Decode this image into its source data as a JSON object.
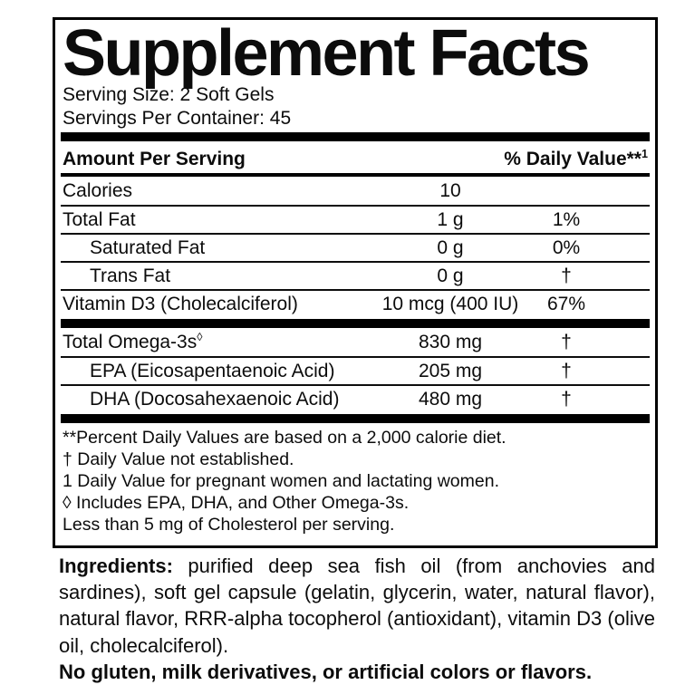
{
  "supplement": {
    "title": "Supplement Facts",
    "serving_size": "Serving Size: 2 Soft Gels",
    "servings_per_container": "Servings Per Container: 45",
    "header": {
      "amount_label": "Amount Per Serving",
      "daily_value_label": "% Daily Value**",
      "daily_value_sup": "1"
    },
    "rows": [
      {
        "name": "Calories",
        "sup": "",
        "amount": "10",
        "dv": ""
      },
      {
        "name": "Total Fat",
        "sup": "",
        "amount": "1 g",
        "dv": "1%"
      },
      {
        "name": "Saturated Fat",
        "sup": "",
        "amount": "0 g",
        "dv": "0%"
      },
      {
        "name": "Trans Fat",
        "sup": "",
        "amount": "0 g",
        "dv": "†"
      },
      {
        "name": "Vitamin D3 (Cholecalciferol)",
        "sup": "",
        "amount": "10 mcg (400 IU)",
        "dv": "67%"
      }
    ],
    "rows2": [
      {
        "name": "Total Omega-3s",
        "sup": "◊",
        "amount": "830 mg",
        "dv": "†"
      },
      {
        "name": "EPA (Eicosapentaenoic Acid)",
        "sup": "",
        "amount": "205 mg",
        "dv": "†"
      },
      {
        "name": "DHA (Docosahexaenoic Acid)",
        "sup": "",
        "amount": "480 mg",
        "dv": "†"
      }
    ],
    "footnotes": [
      "**Percent Daily Values are based on a 2,000 calorie diet.",
      "† Daily Value not established.",
      "1 Daily Value for pregnant women and lactating women.",
      "◊ Includes EPA, DHA, and Other Omega-3s.",
      "Less than 5 mg of Cholesterol per serving."
    ]
  },
  "ingredients": {
    "intro": "Ingredients:",
    "text": " purified deep sea fish oil (from anchovies and sardines), soft gel capsule (gelatin, glycerin, water, natural flavor), natural flavor, RRR-alpha tocopherol (antioxidant), vitamin D3 (olive oil, cholecalciferol).",
    "no_claim": "No gluten, milk derivatives, or artificial colors or flavors."
  },
  "colors": {
    "text": "#0c0c0c",
    "rule": "#000000",
    "background": "#ffffff"
  }
}
